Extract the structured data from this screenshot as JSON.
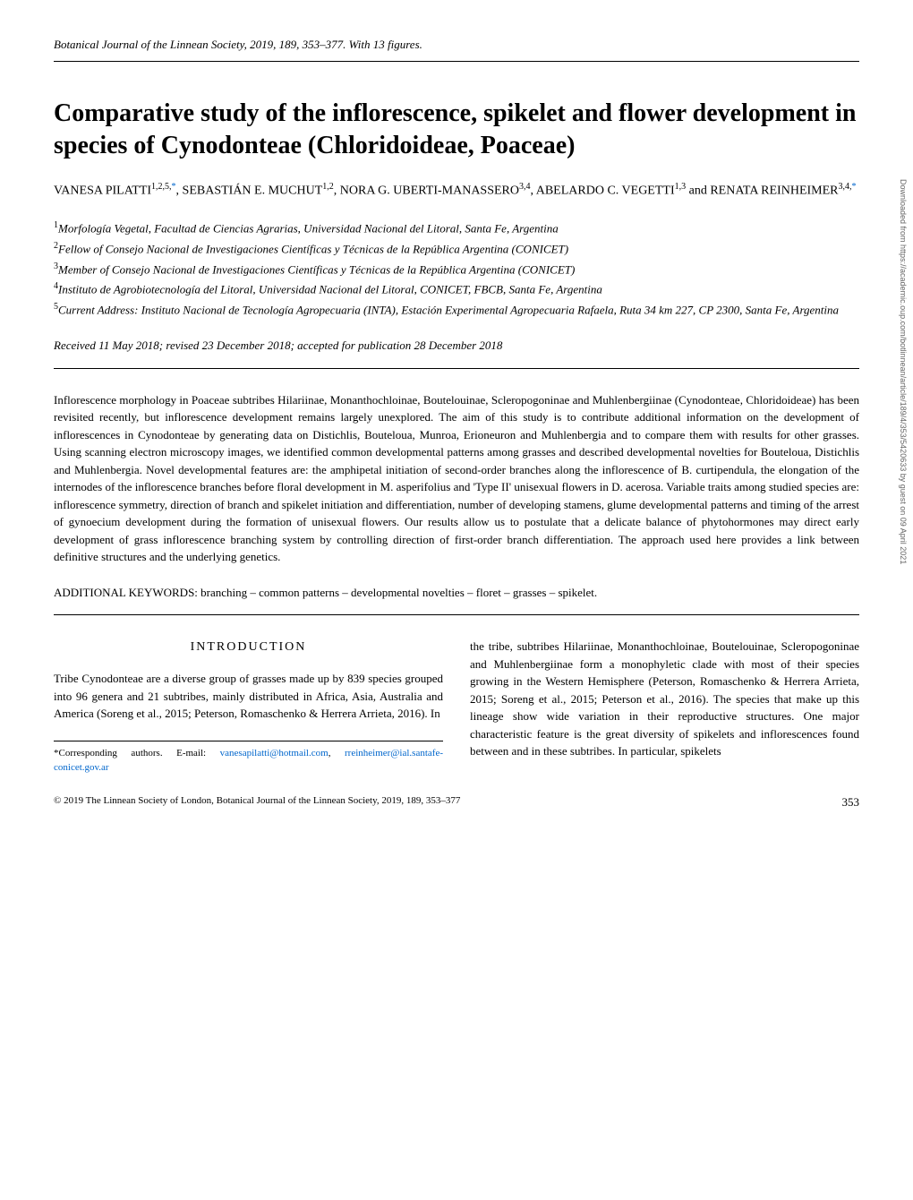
{
  "journal_header": "Botanical Journal of the Linnean Society, 2019, 189, 353–377. With 13 figures.",
  "title": "Comparative study of the inflorescence, spikelet and flower development in species of Cynodonteae (Chloridoideae, Poaceae)",
  "authors_line1": "VANESA PILATTI",
  "authors_sup1": "1,2,5,",
  "authors_sup1b": "*",
  "authors_line2": ", SEBASTIÁN E. MUCHUT",
  "authors_sup2": "1,2",
  "authors_line3": ", NORA G. UBERTI-MANASSERO",
  "authors_sup3": "3,4",
  "authors_line4": ", ABELARDO C. VEGETTI",
  "authors_sup4": "1,3",
  "authors_line5": " and RENATA REINHEIMER",
  "authors_sup5": "3,4,",
  "authors_sup5b": "*",
  "affiliations": [
    {
      "num": "1",
      "text": "Morfología Vegetal, Facultad de Ciencias Agrarias, Universidad Nacional del Litoral, Santa Fe, Argentina"
    },
    {
      "num": "2",
      "text": "Fellow of Consejo Nacional de Investigaciones Científicas y Técnicas de la República Argentina (CONICET)"
    },
    {
      "num": "3",
      "text": "Member of Consejo Nacional de Investigaciones Científicas y Técnicas de la República Argentina (CONICET)"
    },
    {
      "num": "4",
      "text": "Instituto de Agrobiotecnología del Litoral, Universidad Nacional del Litoral, CONICET, FBCB, Santa Fe, Argentina"
    },
    {
      "num": "5",
      "text": "Current Address: Instituto Nacional de Tecnología Agropecuaria (INTA), Estación Experimental Agropecuaria Rafaela, Ruta 34 km 227, CP 2300, Santa Fe, Argentina"
    }
  ],
  "received": "Received 11 May 2018; revised 23 December 2018; accepted for publication 28 December 2018",
  "abstract": "Inflorescence morphology in Poaceae subtribes Hilariinae, Monanthochloinae, Boutelouinae, Scleropogoninae and Muhlenbergiinae (Cynodonteae, Chloridoideae) has been revisited recently, but inflorescence development remains largely unexplored. The aim of this study is to contribute additional information on the development of inflorescences in Cynodonteae by generating data on Distichlis, Bouteloua, Munroa, Erioneuron and Muhlenbergia and to compare them with results for other grasses. Using scanning electron microscopy images, we identified common developmental patterns among grasses and described developmental novelties for Bouteloua, Distichlis and Muhlenbergia. Novel developmental features are: the amphipetal initiation of second-order branches along the inflorescence of B. curtipendula, the elongation of the internodes of the inflorescence branches before floral development in M. asperifolius and 'Type II' unisexual flowers in D. acerosa. Variable traits among studied species are: inflorescence symmetry, direction of branch and spikelet initiation and differentiation, number of developing stamens, glume developmental patterns and timing of the arrest of gynoecium development during the formation of unisexual flowers. Our results allow us to postulate that a delicate balance of phytohormones may direct early development of grass inflorescence branching system by controlling direction of first-order branch differentiation. The approach used here provides a link between definitive structures and the underlying genetics.",
  "keywords_label": "ADDITIONAL KEYWORDS: ",
  "keywords": "branching – common patterns – developmental novelties – floret – grasses – spikelet.",
  "intro_title": "INTRODUCTION",
  "intro_col1": "Tribe Cynodonteae are a diverse group of grasses made up by 839 species grouped into 96 genera and 21 subtribes, mainly distributed in Africa, Asia, Australia and America (Soreng et al., 2015; Peterson, Romaschenko & Herrera Arrieta, 2016). In",
  "intro_col2": "the tribe, subtribes Hilariinae, Monanthochloinae, Boutelouinae, Scleropogoninae and Muhlenbergiinae form a monophyletic clade with most of their species growing in the Western Hemisphere (Peterson, Romaschenko & Herrera Arrieta, 2015; Soreng et al., 2015; Peterson et al., 2016). The species that make up this lineage show wide variation in their reproductive structures. One major characteristic feature is the great diversity of spikelets and inflorescences found between and in these subtribes. In particular, spikelets",
  "footnote_text": "*Corresponding authors. E-mail: ",
  "footnote_email1": "vanesapilatti@hotmail.com",
  "footnote_sep": ", ",
  "footnote_email2": "rreinheimer@ial.santafe-conicet.gov.ar",
  "copyright": "© 2019 The Linnean Society of London, Botanical Journal of the Linnean Society, 2019, 189, 353–377",
  "page_num": "353",
  "sidebar": "Downloaded from https://academic.oup.com/botlinnean/article/189/4/353/5420633 by guest on 09 April 2021"
}
